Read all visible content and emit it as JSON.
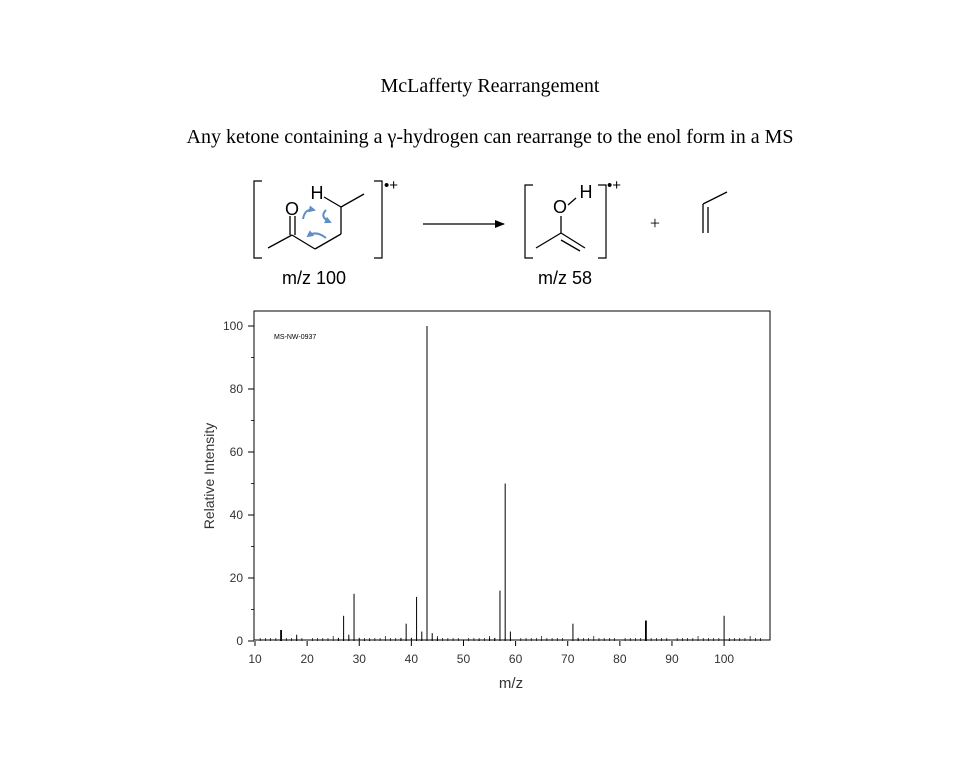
{
  "heading": {
    "title": "McLafferty Rearrangement",
    "subtitle": "Any ketone containing a γ-hydrogen can rearrange to the enol form in a MS"
  },
  "scheme": {
    "reactant": {
      "h_label": "H",
      "o_label": "O",
      "charge": "•+",
      "mz_label": "m/z 100"
    },
    "product": {
      "h_label": "H",
      "o_label": "O",
      "charge": "•+",
      "mz_label": "m/z 58"
    },
    "plus": "+",
    "arrow_color": "#5b8fc7"
  },
  "chart_data": {
    "type": "bar",
    "annotation": "MS-NW-0937",
    "xlabel": "m/z",
    "ylabel": "Relative Intensity",
    "xlim": [
      10,
      109
    ],
    "ylim": [
      0,
      100
    ],
    "xticks": [
      10,
      20,
      30,
      40,
      50,
      60,
      70,
      80,
      90,
      100
    ],
    "yticks": [
      0,
      20,
      40,
      60,
      80,
      100
    ],
    "peaks": [
      {
        "mz": 15,
        "intensity": 3.5
      },
      {
        "mz": 18,
        "intensity": 2
      },
      {
        "mz": 26,
        "intensity": 1
      },
      {
        "mz": 27,
        "intensity": 8
      },
      {
        "mz": 28,
        "intensity": 2
      },
      {
        "mz": 29,
        "intensity": 15
      },
      {
        "mz": 30,
        "intensity": 1
      },
      {
        "mz": 31,
        "intensity": 0.5
      },
      {
        "mz": 32,
        "intensity": 0.5
      },
      {
        "mz": 38,
        "intensity": 1
      },
      {
        "mz": 39,
        "intensity": 5.5
      },
      {
        "mz": 40,
        "intensity": 1
      },
      {
        "mz": 41,
        "intensity": 14
      },
      {
        "mz": 42,
        "intensity": 3
      },
      {
        "mz": 43,
        "intensity": 100
      },
      {
        "mz": 44,
        "intensity": 2.5
      },
      {
        "mz": 45,
        "intensity": 1
      },
      {
        "mz": 50,
        "intensity": 0.5
      },
      {
        "mz": 53,
        "intensity": 0.5
      },
      {
        "mz": 55,
        "intensity": 1
      },
      {
        "mz": 56,
        "intensity": 1
      },
      {
        "mz": 57,
        "intensity": 16
      },
      {
        "mz": 58,
        "intensity": 50
      },
      {
        "mz": 59,
        "intensity": 3
      },
      {
        "mz": 71,
        "intensity": 5.5
      },
      {
        "mz": 72,
        "intensity": 1
      },
      {
        "mz": 85,
        "intensity": 6.5
      },
      {
        "mz": 100,
        "intensity": 8
      },
      {
        "mz": 101,
        "intensity": 0.5
      }
    ]
  }
}
